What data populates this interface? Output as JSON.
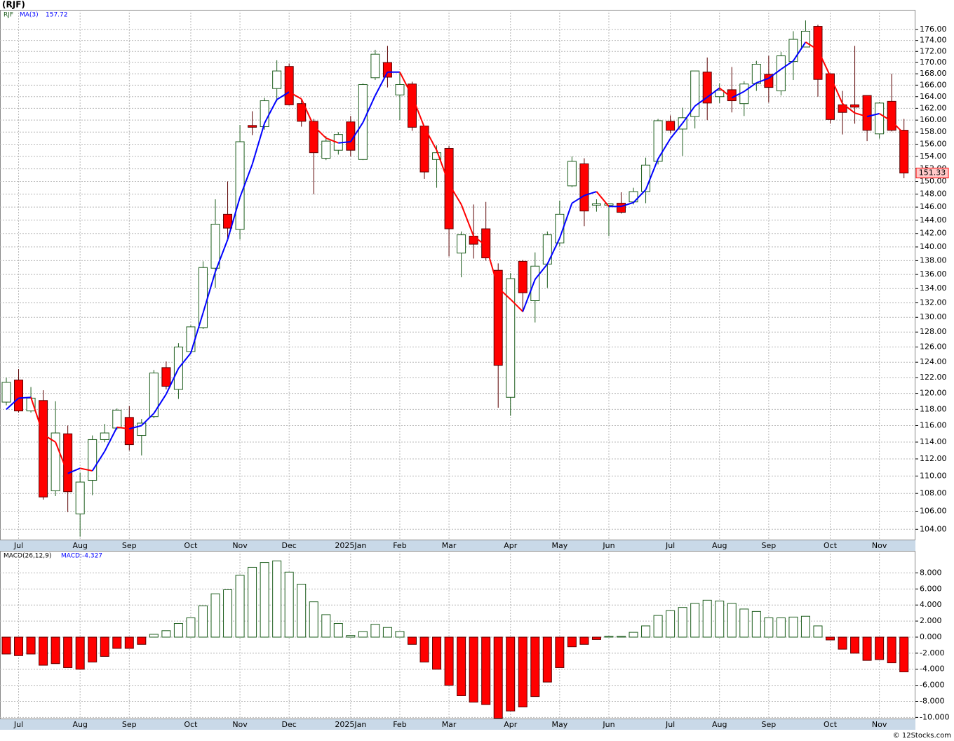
{
  "chart_data": [
    {
      "type": "candlestick",
      "title": "(RJF)",
      "symbol": "RJF",
      "categories": [
        null,
        "Jul",
        null,
        null,
        null,
        null,
        "Aug",
        null,
        null,
        null,
        "Sep",
        null,
        null,
        null,
        null,
        "Oct",
        null,
        null,
        null,
        "Nov",
        null,
        null,
        null,
        "Dec",
        null,
        null,
        null,
        null,
        "2025Jan",
        null,
        null,
        null,
        "Feb",
        null,
        null,
        null,
        "Mar",
        null,
        null,
        null,
        null,
        "Apr",
        null,
        null,
        null,
        "May",
        null,
        null,
        null,
        "Jun",
        null,
        null,
        null,
        null,
        "Jul",
        null,
        null,
        null,
        "Aug",
        null,
        null,
        null,
        "Sep",
        null,
        null,
        null,
        null,
        "Oct",
        null,
        null,
        null,
        "Nov",
        null,
        null
      ],
      "open": [
        118.9,
        121.7,
        117.8,
        119.1,
        108.3,
        115,
        105.7,
        109.5,
        114.3,
        115.7,
        117,
        114.8,
        117.1,
        123.3,
        120.5,
        125.4,
        128.6,
        136.9,
        144.9,
        142.6,
        159.1,
        158.9,
        165.4,
        169.3,
        162.8,
        159.8,
        153.7,
        155,
        159.7,
        153.5,
        167.3,
        170,
        164.3,
        166.2,
        159,
        153.5,
        155.3,
        139.1,
        141.6,
        142.7,
        136.6,
        119.5,
        137.9,
        132.3,
        137.5,
        140.6,
        149.3,
        152.8,
        146.3,
        146.3,
        146.6,
        146.8,
        148.4,
        153.2,
        159.8,
        158.5,
        160.6,
        168.3,
        164,
        165.2,
        162.8,
        166.3,
        167.9,
        165,
        170.2,
        172.8,
        176.6,
        168,
        162.6,
        162.6,
        164.2,
        157.7,
        163.2,
        158.3
      ],
      "high": [
        122,
        123.1,
        120.8,
        120.4,
        119,
        116,
        110.4,
        114.8,
        116.2,
        118.1,
        118.4,
        116.8,
        123,
        124.1,
        126.5,
        128.9,
        137.9,
        147.2,
        150,
        159.2,
        161.5,
        163.8,
        170.4,
        169.8,
        163.4,
        160.2,
        157.3,
        158,
        160.7,
        166.3,
        172.3,
        173,
        168.2,
        166.6,
        159,
        155.8,
        155.7,
        142.3,
        146.4,
        146.8,
        137.6,
        136.2,
        138.1,
        139.2,
        142.3,
        147,
        154,
        153.7,
        147.2,
        146.6,
        148.3,
        149,
        153.8,
        160.2,
        160.8,
        162.1,
        168.5,
        170.9,
        166.3,
        169.2,
        166.7,
        170.3,
        171.2,
        171.9,
        175.7,
        177.7,
        176.9,
        168.1,
        165,
        173,
        164.2,
        163.1,
        168,
        160.2
      ],
      "low": [
        118.5,
        117.6,
        117.6,
        107.3,
        107.7,
        105.9,
        103.2,
        107.8,
        114,
        115.5,
        113,
        112.4,
        116.9,
        120.5,
        119.3,
        125.1,
        128.4,
        134.1,
        141.2,
        141.1,
        157.5,
        158.4,
        163.2,
        162.5,
        158.9,
        148,
        153.4,
        154.3,
        154,
        153.4,
        166.9,
        165.6,
        160,
        158.2,
        150.4,
        149,
        138.6,
        135.6,
        138.3,
        138,
        118.2,
        117.2,
        130.7,
        129.3,
        134.1,
        140.1,
        149.1,
        143.1,
        145.3,
        141.6,
        145,
        146.4,
        146.6,
        152.7,
        157.8,
        154.1,
        158.6,
        160,
        162.9,
        161.3,
        160.7,
        165,
        163,
        164.2,
        166.9,
        172.8,
        164,
        159.4,
        157.6,
        159.4,
        156.5,
        156.9,
        158.1,
        150.5
      ],
      "close": [
        121.4,
        117.8,
        119.4,
        107.6,
        115.1,
        108.2,
        109.3,
        114.3,
        115.1,
        117.9,
        113.7,
        116.3,
        122.6,
        120.9,
        126,
        128.7,
        137,
        143.4,
        142.8,
        156.4,
        158.8,
        163.3,
        168.5,
        162.6,
        159.8,
        154.6,
        156.5,
        157.6,
        155,
        166.1,
        171.5,
        167.4,
        166.1,
        158.8,
        151.5,
        154.6,
        142.7,
        141.8,
        140.4,
        138.4,
        123.6,
        135.4,
        133.4,
        137.2,
        141.8,
        144.9,
        153.2,
        145.4,
        146.5,
        146.5,
        145.2,
        148.4,
        152.6,
        159.9,
        158.3,
        160.4,
        168.5,
        162.9,
        165.1,
        163.3,
        166.2,
        169.7,
        165.6,
        171.2,
        174.2,
        175.7,
        167,
        160.1,
        161.3,
        162.2,
        158.3,
        162.9,
        158.3,
        151.33
      ],
      "up_color": "#ffffff",
      "up_edge": "#1e5e1e",
      "down_color": "#ff0000",
      "down_edge": "#5a0000",
      "ma": {
        "name": "MA(3)",
        "up_color": "#0000ff",
        "down_color": "#ff0000",
        "values": [
          118,
          119.4,
          119.5,
          114.9,
          114,
          110.3,
          110.9,
          110.6,
          112.9,
          115.8,
          115.6,
          116,
          117.5,
          119.9,
          123.2,
          125.2,
          130.6,
          136.4,
          141.1,
          147.5,
          152.7,
          159.5,
          163.5,
          164.8,
          163.6,
          159,
          157,
          156.2,
          156.4,
          159.6,
          164.2,
          168.3,
          168.3,
          164.1,
          158.8,
          155,
          149.6,
          146.4,
          141.6,
          140.2,
          134.1,
          132.5,
          130.8,
          135.3,
          137.5,
          141.3,
          146.6,
          147.8,
          148.4,
          146.1,
          146.1,
          146.7,
          148.7,
          153.6,
          156.9,
          159.5,
          162.4,
          163.9,
          165.5,
          163.8,
          164.9,
          166.4,
          167.2,
          168.8,
          170.3,
          173.7,
          172.3,
          167.6,
          162.8,
          161.2,
          160.6,
          161.1,
          159.8,
          157.72
        ]
      },
      "log_scale": true,
      "grid": true,
      "ylim": [
        102.8,
        179.7
      ],
      "yticks": [
        {
          "value": 104,
          "label": "104.00"
        },
        {
          "value": 106,
          "label": "106.00"
        },
        {
          "value": 108,
          "label": "108.00"
        },
        {
          "value": 110,
          "label": "110.00"
        },
        {
          "value": 112,
          "label": "112.00"
        },
        {
          "value": 114,
          "label": "114.00"
        },
        {
          "value": 116,
          "label": "116.00"
        },
        {
          "value": 118,
          "label": "118.00"
        },
        {
          "value": 120,
          "label": "120.00"
        },
        {
          "value": 122,
          "label": "122.00"
        },
        {
          "value": 124,
          "label": "124.00"
        },
        {
          "value": 126,
          "label": "126.00"
        },
        {
          "value": 128,
          "label": "128.00"
        },
        {
          "value": 130,
          "label": "130.00"
        },
        {
          "value": 132,
          "label": "132.00"
        },
        {
          "value": 134,
          "label": "134.00"
        },
        {
          "value": 136,
          "label": "136.00"
        },
        {
          "value": 138,
          "label": "138.00"
        },
        {
          "value": 140,
          "label": "140.00"
        },
        {
          "value": 142,
          "label": "142.00"
        },
        {
          "value": 144,
          "label": "144.00"
        },
        {
          "value": 146,
          "label": "146.00"
        },
        {
          "value": 148,
          "label": "148.00"
        },
        {
          "value": 150,
          "label": "150.00"
        },
        {
          "value": 152,
          "label": "152.00"
        },
        {
          "value": 154,
          "label": "154.00"
        },
        {
          "value": 156,
          "label": "156.00"
        },
        {
          "value": 158,
          "label": "158.00"
        },
        {
          "value": 160,
          "label": "160.00"
        },
        {
          "value": 162,
          "label": "162.00"
        },
        {
          "value": 164,
          "label": "164.00"
        },
        {
          "value": 166,
          "label": "166.00"
        },
        {
          "value": 168,
          "label": "168.00"
        },
        {
          "value": 170,
          "label": "170.00"
        },
        {
          "value": 172,
          "label": "172.00"
        },
        {
          "value": 174,
          "label": "174.00"
        },
        {
          "value": 176,
          "label": "176.00"
        }
      ]
    },
    {
      "type": "bar",
      "title": "MACD(26,12,9)",
      "label": "MACD:-4.327",
      "values": [
        -2.1,
        -2.3,
        -2.1,
        -3.5,
        -3.3,
        -3.8,
        -4,
        -3.1,
        -2.4,
        -1.4,
        -1.4,
        -0.9,
        0.35,
        0.8,
        1.7,
        2.4,
        3.9,
        5.4,
        5.9,
        7.7,
        8.7,
        9.3,
        9.5,
        8.1,
        6.6,
        4.4,
        2.8,
        1.7,
        0.2,
        0.7,
        1.6,
        1.2,
        0.7,
        -0.9,
        -3.1,
        -4,
        -6,
        -7.3,
        -8.1,
        -8.4,
        -10.1,
        -9.2,
        -8.7,
        -7.4,
        -5.6,
        -3.8,
        -1.2,
        -0.9,
        -0.3,
        0.1,
        0.1,
        0.6,
        1.4,
        2.7,
        3.3,
        3.7,
        4.2,
        4.6,
        4.5,
        4.2,
        3.5,
        3.2,
        2.4,
        2.4,
        2.5,
        2.6,
        1.4,
        -0.35,
        -1.5,
        -2,
        -2.9,
        -2.8,
        -3.2,
        -4.327
      ],
      "pos_color": "#ffffff",
      "pos_edge": "#1e5e1e",
      "neg_color": "#ff0000",
      "neg_edge": "#5a0000",
      "grid": true,
      "ylim": [
        -10.23,
        10.75
      ],
      "yticks": [
        {
          "value": -10,
          "label": "-10.000"
        },
        {
          "value": -8,
          "label": "-8.000"
        },
        {
          "value": -6,
          "label": "-6.000"
        },
        {
          "value": -4,
          "label": "-4.000"
        },
        {
          "value": -2,
          "label": "-2.000"
        },
        {
          "value": 0,
          "label": "0.000"
        },
        {
          "value": 2,
          "label": "2.000"
        },
        {
          "value": 4,
          "label": "4.000"
        },
        {
          "value": 6,
          "label": "6.000"
        },
        {
          "value": 8,
          "label": "8.000"
        }
      ]
    }
  ],
  "footer": "© 12Stocks.com"
}
